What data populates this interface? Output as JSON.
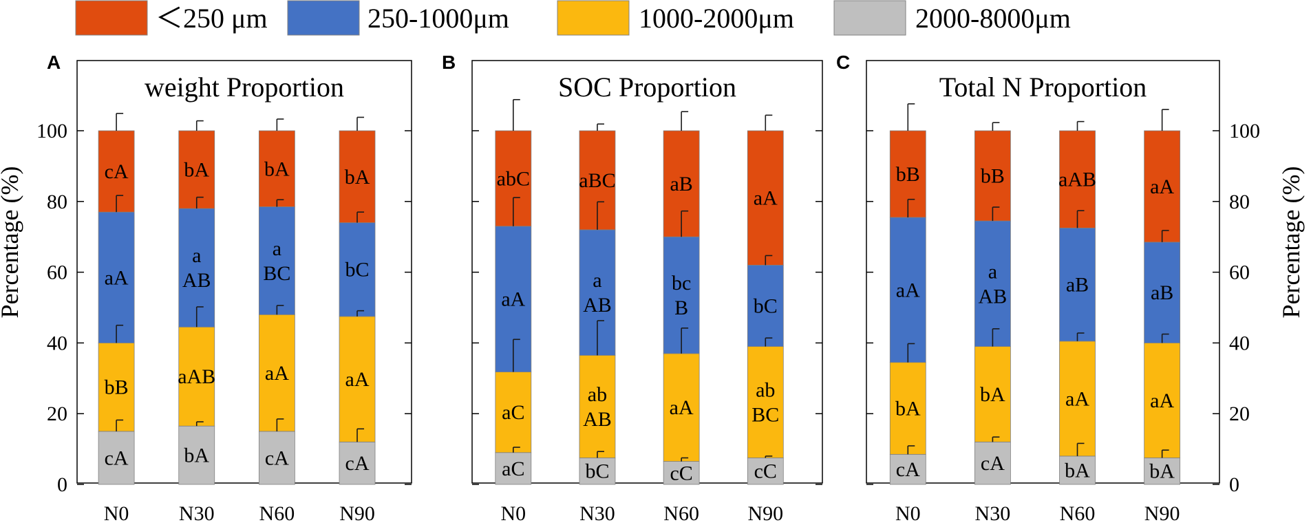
{
  "legend": {
    "items": [
      {
        "label": "＜250 μm",
        "color": "#e04c0f"
      },
      {
        "label": "250-1000μm",
        "color": "#4472c4"
      },
      {
        "label": "1000-2000μm",
        "color": "#fbb80f"
      },
      {
        "label": "2000-8000μm",
        "color": "#bfbfbf"
      }
    ]
  },
  "axis_label_left": "Percentage (%)",
  "axis_label_right": "Percentage (%)",
  "chart_data": [
    {
      "type": "bar",
      "stacked": true,
      "panel_letter": "A",
      "title": "weight Proportion",
      "categories": [
        "N0",
        "N30",
        "N60",
        "N90"
      ],
      "ylabel": "Percentage (%)",
      "ylim": [
        0,
        100
      ],
      "yticks": [
        "0",
        "20",
        "40",
        "60",
        "80",
        "100"
      ],
      "series": [
        {
          "name": "2000-8000μm",
          "values": [
            15.0,
            16.5,
            15.0,
            12.0
          ],
          "errors": [
            3.2,
            1.2,
            3.5,
            3.7
          ],
          "labels": [
            [
              "cA"
            ],
            [
              "bA"
            ],
            [
              "cA"
            ],
            [
              "cA"
            ]
          ]
        },
        {
          "name": "1000-2000μm",
          "values": [
            25.0,
            28.0,
            33.0,
            35.5
          ],
          "errors": [
            5.0,
            5.7,
            2.6,
            1.6
          ],
          "labels": [
            [
              "bB"
            ],
            [
              "aAB"
            ],
            [
              "aA"
            ],
            [
              "aA"
            ]
          ]
        },
        {
          "name": "250-1000μm",
          "values": [
            37.0,
            33.5,
            30.5,
            26.5
          ],
          "errors": [
            4.7,
            3.2,
            2.0,
            3.0
          ],
          "labels": [
            [
              "aA"
            ],
            [
              "a",
              "AB"
            ],
            [
              "a",
              "BC"
            ],
            [
              "bC"
            ]
          ]
        },
        {
          "name": "＜250 μm",
          "values": [
            23.0,
            22.0,
            21.5,
            26.0
          ],
          "errors": [
            4.9,
            2.8,
            3.3,
            3.8
          ],
          "labels": [
            [
              "cA"
            ],
            [
              "bA"
            ],
            [
              "bA"
            ],
            [
              "bA"
            ]
          ]
        }
      ]
    },
    {
      "type": "bar",
      "stacked": true,
      "panel_letter": "B",
      "title": "SOC Proportion",
      "categories": [
        "N0",
        "N30",
        "N60",
        "N90"
      ],
      "ylim": [
        0,
        100
      ],
      "series": [
        {
          "name": "2000-8000μm",
          "values": [
            9.0,
            7.5,
            6.5,
            7.5
          ],
          "errors": [
            1.5,
            1.8,
            1.0,
            0.5
          ],
          "labels": [
            [
              "aC"
            ],
            [
              "bC"
            ],
            [
              "cC"
            ],
            [
              "cC"
            ]
          ]
        },
        {
          "name": "1000-2000μm",
          "values": [
            22.8,
            29.0,
            30.5,
            31.5
          ],
          "errors": [
            9.2,
            9.8,
            7.2,
            2.4
          ],
          "labels": [
            [
              "aC"
            ],
            [
              "ab",
              "AB"
            ],
            [
              "aA"
            ],
            [
              "ab",
              "BC"
            ]
          ]
        },
        {
          "name": "250-1000μm",
          "values": [
            41.2,
            35.5,
            33.0,
            23.0
          ],
          "errors": [
            8.1,
            7.9,
            7.3,
            2.7
          ],
          "labels": [
            [
              "aA"
            ],
            [
              "a",
              "AB"
            ],
            [
              "bc",
              "B"
            ],
            [
              "bC"
            ]
          ]
        },
        {
          "name": "＜250 μm",
          "values": [
            27.0,
            28.0,
            30.0,
            38.0
          ],
          "errors": [
            8.8,
            1.9,
            5.4,
            4.4
          ],
          "labels": [
            [
              "abC"
            ],
            [
              "aBC"
            ],
            [
              "aB"
            ],
            [
              "aA"
            ]
          ]
        }
      ]
    },
    {
      "type": "bar",
      "stacked": true,
      "panel_letter": "C",
      "title": "Total N Proportion",
      "categories": [
        "N0",
        "N30",
        "N60",
        "N90"
      ],
      "ylabel": "Percentage (%)",
      "ylim": [
        0,
        100
      ],
      "yticks": [
        "0",
        "20",
        "40",
        "60",
        "80",
        "100"
      ],
      "series": [
        {
          "name": "2000-8000μm",
          "values": [
            8.5,
            12.0,
            8.0,
            7.5
          ],
          "errors": [
            2.4,
            1.4,
            3.6,
            2.2
          ],
          "labels": [
            [
              "cA"
            ],
            [
              "cA"
            ],
            [
              "bA"
            ],
            [
              "bA"
            ]
          ]
        },
        {
          "name": "1000-2000μm",
          "values": [
            26.0,
            27.0,
            32.5,
            32.5
          ],
          "errors": [
            5.3,
            5.0,
            2.3,
            2.5
          ],
          "labels": [
            [
              "bA"
            ],
            [
              "bA"
            ],
            [
              "aA"
            ],
            [
              "aA"
            ]
          ]
        },
        {
          "name": "250-1000μm",
          "values": [
            41.0,
            35.5,
            32.0,
            28.5
          ],
          "errors": [
            5.1,
            3.9,
            4.9,
            3.3
          ],
          "labels": [
            [
              "aA"
            ],
            [
              "a",
              "AB"
            ],
            [
              "aB"
            ],
            [
              "aB"
            ]
          ]
        },
        {
          "name": "＜250 μm",
          "values": [
            24.5,
            25.5,
            27.5,
            31.5
          ],
          "errors": [
            7.6,
            2.3,
            2.6,
            6.0
          ],
          "labels": [
            [
              "bB"
            ],
            [
              "bB"
            ],
            [
              "aAB"
            ],
            [
              "aA"
            ]
          ]
        }
      ]
    }
  ]
}
